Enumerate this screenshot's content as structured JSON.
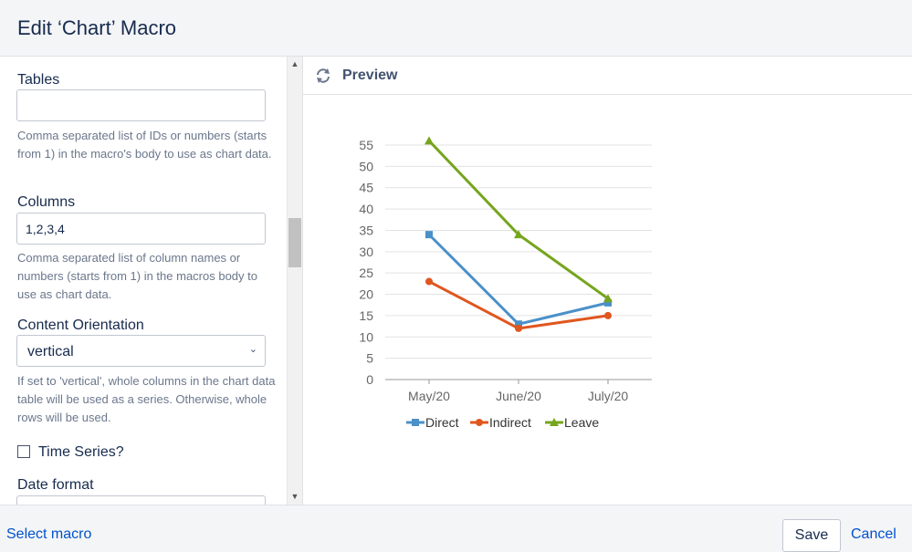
{
  "dialog": {
    "title": "Edit ‘Chart’ Macro"
  },
  "form": {
    "tables": {
      "label": "Tables",
      "value": "",
      "help": "Comma separated list of IDs or numbers (starts from 1) in the macro's body to use as chart data."
    },
    "columns": {
      "label": "Columns",
      "value": "1,2,3,4",
      "help": "Comma separated list of column names or numbers (starts from 1) in the macros body to use as chart data."
    },
    "content_orientation": {
      "label": "Content Orientation",
      "value": "vertical",
      "help": "If set to 'vertical', whole columns in the chart data table will be used as a series. Otherwise, whole rows will be used."
    },
    "time_series": {
      "label": "Time Series?",
      "checked": false
    },
    "date_format": {
      "label": "Date format",
      "value": ""
    }
  },
  "preview": {
    "title": "Preview",
    "refresh_icon": "refresh-icon"
  },
  "chart_data": {
    "type": "line",
    "categories": [
      "May/20",
      "June/20",
      "July/20"
    ],
    "series": [
      {
        "name": "Direct",
        "values": [
          34,
          13,
          18
        ],
        "color": "#4a90c9",
        "marker": "square"
      },
      {
        "name": "Indirect",
        "values": [
          23,
          12,
          15
        ],
        "color": "#e0561f",
        "marker": "circle"
      },
      {
        "name": "Leave",
        "values": [
          56,
          34,
          19
        ],
        "color": "#76a51e",
        "marker": "triangle"
      }
    ],
    "yticks": [
      0,
      5,
      10,
      15,
      20,
      25,
      30,
      35,
      40,
      45,
      50,
      55
    ],
    "ylim": [
      0,
      55
    ],
    "grid": true,
    "legend": "bottom"
  },
  "footer": {
    "select_macro": "Select macro",
    "save": "Save",
    "cancel": "Cancel"
  }
}
